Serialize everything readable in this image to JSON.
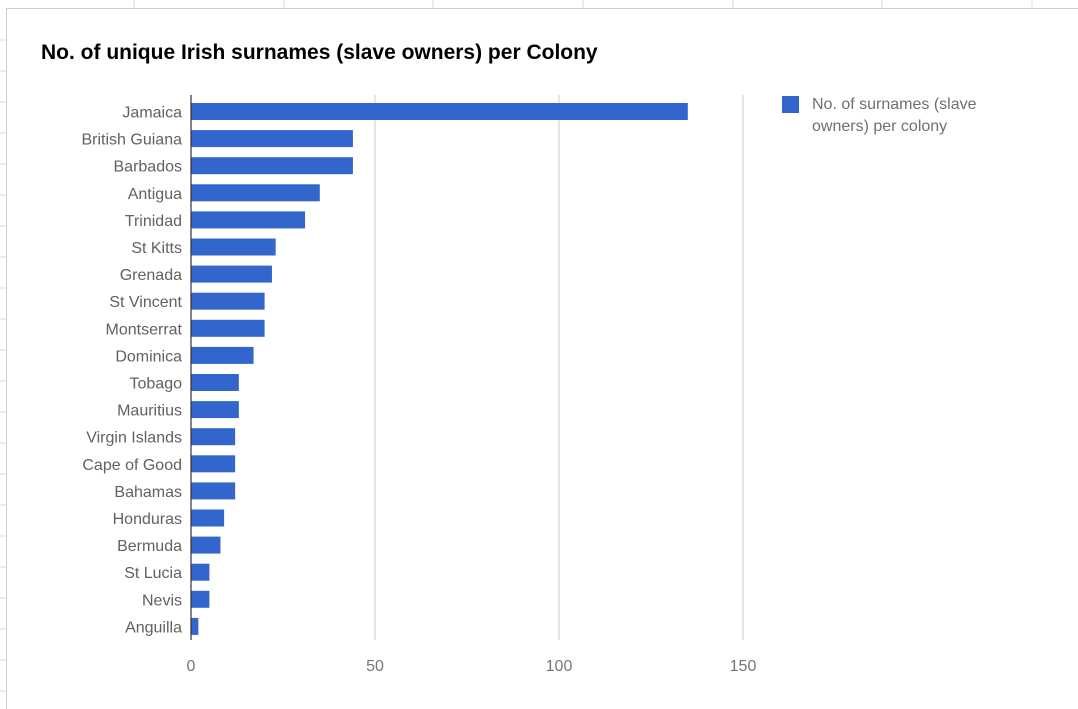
{
  "chart_data": {
    "type": "bar",
    "orientation": "horizontal",
    "title": "No. of unique Irish surnames (slave owners) per Colony",
    "categories": [
      "Jamaica",
      "British Guiana",
      "Barbados",
      "Antigua",
      "Trinidad",
      "St Kitts",
      "Grenada",
      "St Vincent",
      "Montserrat",
      "Dominica",
      "Tobago",
      "Mauritius",
      "Virgin Islands",
      "Cape of Good",
      "Bahamas",
      "Honduras",
      "Bermuda",
      "St Lucia",
      "Nevis",
      "Anguilla"
    ],
    "series": [
      {
        "name": "No. of surnames (slave owners) per colony",
        "values": [
          135,
          44,
          44,
          35,
          31,
          23,
          22,
          20,
          20,
          17,
          13,
          13,
          12,
          12,
          12,
          9,
          8,
          5,
          5,
          2
        ],
        "color": "#3366cc"
      }
    ],
    "xticks": [
      "0",
      "50",
      "100",
      "150"
    ],
    "xlim": [
      0,
      150
    ],
    "grid": true,
    "legend_position": "right"
  }
}
